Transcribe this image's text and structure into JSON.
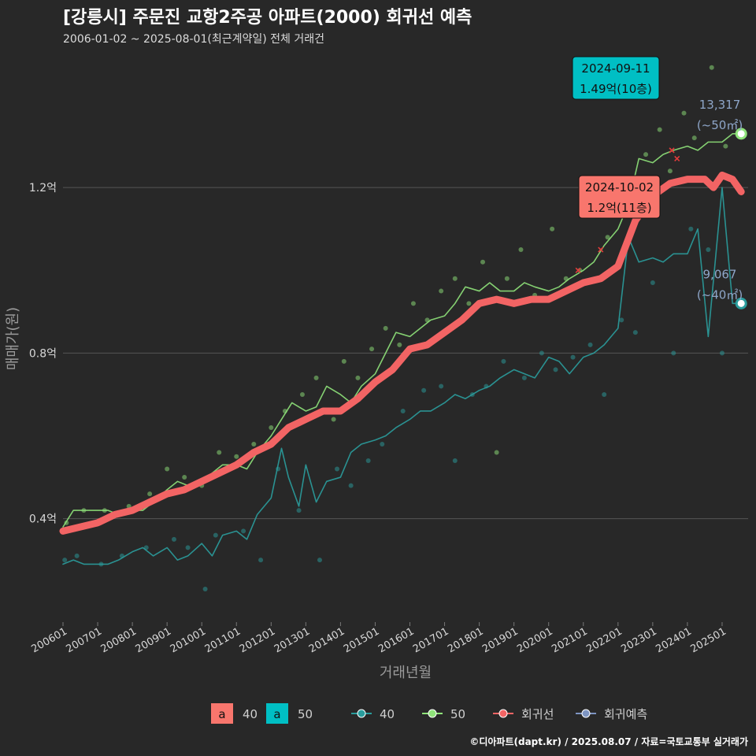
{
  "chart_data": {
    "type": "line",
    "title": "[강릉시] 주문진 교항2주공 아파트(2000) 회귀선 예측",
    "subtitle": "2006-01-02 ~ 2025-08-01(최근계약일) 전체 거래건",
    "xlabel": "거래년월",
    "ylabel": "매매가(원)",
    "caption": "©디아파트(dapt.kr) / 2025.08.07 / 자료=국토교통부 실거래가",
    "x_range": [
      2006.0,
      2025.75
    ],
    "y_range": [
      0.15,
      1.52
    ],
    "y_unit": "억",
    "y_ticks": [
      {
        "value": 0.4,
        "label": "0.4억"
      },
      {
        "value": 0.8,
        "label": "0.8억"
      },
      {
        "value": 1.2,
        "label": "1.2억"
      }
    ],
    "x_ticks": [
      "200601",
      "200701",
      "200801",
      "200901",
      "201001",
      "201101",
      "201201",
      "201301",
      "201401",
      "201501",
      "201601",
      "201701",
      "201801",
      "201901",
      "202001",
      "202101",
      "202201",
      "202301",
      "202401",
      "202501"
    ],
    "grid": true,
    "legend_position": "bottom",
    "colors": {
      "background": "#282828",
      "grid": "#555555",
      "size40": "#2a9d9d",
      "size50": "#8fe37a",
      "regression": "#f26464",
      "forecast": "#7e95c2",
      "label_red": "#f8766d",
      "label_teal": "#00bfc4"
    },
    "series": [
      {
        "name": "40",
        "color": "#2a9d9d",
        "x": [
          2006.0,
          2006.3,
          2006.6,
          2007.0,
          2007.3,
          2007.6,
          2008.0,
          2008.3,
          2008.6,
          2009.0,
          2009.3,
          2009.6,
          2010.0,
          2010.3,
          2010.6,
          2011.0,
          2011.3,
          2011.6,
          2012.0,
          2012.3,
          2012.5,
          2012.8,
          2013.0,
          2013.3,
          2013.6,
          2014.0,
          2014.3,
          2014.6,
          2015.0,
          2015.3,
          2015.6,
          2016.0,
          2016.3,
          2016.6,
          2017.0,
          2017.3,
          2017.6,
          2018.0,
          2018.3,
          2018.6,
          2019.0,
          2019.3,
          2019.6,
          2020.0,
          2020.3,
          2020.6,
          2021.0,
          2021.3,
          2021.6,
          2022.0,
          2022.3,
          2022.6,
          2023.0,
          2023.3,
          2023.6,
          2024.0,
          2024.3,
          2024.6,
          2025.0,
          2025.3,
          2025.6
        ],
        "y": [
          0.29,
          0.3,
          0.29,
          0.29,
          0.29,
          0.3,
          0.32,
          0.33,
          0.31,
          0.33,
          0.3,
          0.31,
          0.34,
          0.31,
          0.36,
          0.37,
          0.35,
          0.41,
          0.45,
          0.57,
          0.5,
          0.43,
          0.53,
          0.44,
          0.49,
          0.5,
          0.56,
          0.58,
          0.59,
          0.6,
          0.62,
          0.64,
          0.66,
          0.66,
          0.68,
          0.7,
          0.69,
          0.71,
          0.72,
          0.74,
          0.76,
          0.75,
          0.74,
          0.79,
          0.78,
          0.75,
          0.79,
          0.8,
          0.82,
          0.86,
          1.08,
          1.02,
          1.03,
          1.02,
          1.04,
          1.04,
          1.1,
          0.84,
          1.2,
          0.92,
          0.92
        ]
      },
      {
        "name": "50",
        "color": "#8fe37a",
        "x": [
          2006.0,
          2006.3,
          2006.6,
          2007.0,
          2007.3,
          2007.6,
          2008.0,
          2008.3,
          2008.6,
          2009.0,
          2009.3,
          2009.6,
          2010.0,
          2010.3,
          2010.6,
          2011.0,
          2011.3,
          2011.6,
          2012.0,
          2012.3,
          2012.6,
          2013.0,
          2013.3,
          2013.6,
          2014.0,
          2014.3,
          2014.6,
          2015.0,
          2015.3,
          2015.6,
          2016.0,
          2016.3,
          2016.6,
          2017.0,
          2017.3,
          2017.6,
          2018.0,
          2018.3,
          2018.6,
          2019.0,
          2019.3,
          2019.6,
          2020.0,
          2020.3,
          2020.6,
          2021.0,
          2021.3,
          2021.6,
          2022.0,
          2022.3,
          2022.6,
          2023.0,
          2023.3,
          2023.6,
          2024.0,
          2024.3,
          2024.6,
          2025.0,
          2025.3,
          2025.6
        ],
        "y": [
          0.38,
          0.42,
          0.42,
          0.42,
          0.42,
          0.41,
          0.42,
          0.42,
          0.44,
          0.47,
          0.49,
          0.48,
          0.49,
          0.51,
          0.53,
          0.53,
          0.52,
          0.56,
          0.6,
          0.64,
          0.68,
          0.66,
          0.67,
          0.72,
          0.7,
          0.68,
          0.72,
          0.75,
          0.8,
          0.85,
          0.84,
          0.86,
          0.88,
          0.89,
          0.92,
          0.96,
          0.95,
          0.97,
          0.95,
          0.95,
          0.97,
          0.96,
          0.95,
          0.96,
          0.98,
          1.0,
          1.02,
          1.06,
          1.1,
          1.16,
          1.27,
          1.26,
          1.28,
          1.29,
          1.3,
          1.29,
          1.31,
          1.31,
          1.33,
          1.33
        ]
      },
      {
        "name": "회귀선",
        "color": "#f26464",
        "x": [
          2006.0,
          2006.5,
          2007.0,
          2007.5,
          2008.0,
          2008.5,
          2009.0,
          2009.5,
          2010.0,
          2010.5,
          2011.0,
          2011.5,
          2012.0,
          2012.5,
          2013.0,
          2013.5,
          2014.0,
          2014.5,
          2015.0,
          2015.5,
          2016.0,
          2016.5,
          2017.0,
          2017.5,
          2018.0,
          2018.5,
          2019.0,
          2019.5,
          2020.0,
          2020.5,
          2021.0,
          2021.5,
          2022.0,
          2022.5,
          2023.0,
          2023.5,
          2024.0,
          2024.5,
          2024.75,
          2025.0,
          2025.3,
          2025.55
        ],
        "y": [
          0.37,
          0.38,
          0.39,
          0.41,
          0.42,
          0.44,
          0.46,
          0.47,
          0.49,
          0.51,
          0.53,
          0.56,
          0.58,
          0.62,
          0.64,
          0.66,
          0.66,
          0.69,
          0.73,
          0.76,
          0.81,
          0.82,
          0.85,
          0.88,
          0.92,
          0.93,
          0.92,
          0.93,
          0.93,
          0.95,
          0.97,
          0.98,
          1.01,
          1.12,
          1.18,
          1.21,
          1.22,
          1.22,
          1.2,
          1.23,
          1.22,
          1.19
        ]
      }
    ],
    "scatter": {
      "name": "거래건",
      "points": [
        {
          "x": 2006.05,
          "y": 0.3,
          "size": 40
        },
        {
          "x": 2006.4,
          "y": 0.31,
          "size": 40
        },
        {
          "x": 2007.1,
          "y": 0.29,
          "size": 40
        },
        {
          "x": 2007.7,
          "y": 0.31,
          "size": 40
        },
        {
          "x": 2008.4,
          "y": 0.33,
          "size": 40
        },
        {
          "x": 2009.2,
          "y": 0.35,
          "size": 40
        },
        {
          "x": 2009.6,
          "y": 0.33,
          "size": 40
        },
        {
          "x": 2010.1,
          "y": 0.23,
          "size": 40
        },
        {
          "x": 2010.4,
          "y": 0.36,
          "size": 40
        },
        {
          "x": 2011.2,
          "y": 0.37,
          "size": 40
        },
        {
          "x": 2011.7,
          "y": 0.3,
          "size": 40
        },
        {
          "x": 2012.2,
          "y": 0.52,
          "size": 40
        },
        {
          "x": 2012.8,
          "y": 0.42,
          "size": 40
        },
        {
          "x": 2013.4,
          "y": 0.3,
          "size": 40
        },
        {
          "x": 2013.9,
          "y": 0.52,
          "size": 40
        },
        {
          "x": 2014.3,
          "y": 0.48,
          "size": 40
        },
        {
          "x": 2014.8,
          "y": 0.54,
          "size": 40
        },
        {
          "x": 2015.2,
          "y": 0.58,
          "size": 40
        },
        {
          "x": 2015.8,
          "y": 0.66,
          "size": 40
        },
        {
          "x": 2016.4,
          "y": 0.71,
          "size": 40
        },
        {
          "x": 2016.9,
          "y": 0.72,
          "size": 40
        },
        {
          "x": 2017.3,
          "y": 0.54,
          "size": 40
        },
        {
          "x": 2017.8,
          "y": 0.7,
          "size": 40
        },
        {
          "x": 2018.2,
          "y": 0.72,
          "size": 40
        },
        {
          "x": 2018.7,
          "y": 0.78,
          "size": 40
        },
        {
          "x": 2019.3,
          "y": 0.74,
          "size": 40
        },
        {
          "x": 2019.8,
          "y": 0.8,
          "size": 40
        },
        {
          "x": 2020.2,
          "y": 0.76,
          "size": 40
        },
        {
          "x": 2020.7,
          "y": 0.79,
          "size": 40
        },
        {
          "x": 2021.2,
          "y": 0.82,
          "size": 40
        },
        {
          "x": 2021.6,
          "y": 0.7,
          "size": 40
        },
        {
          "x": 2022.1,
          "y": 0.88,
          "size": 40
        },
        {
          "x": 2022.5,
          "y": 0.85,
          "size": 40
        },
        {
          "x": 2023.0,
          "y": 0.97,
          "size": 40
        },
        {
          "x": 2023.6,
          "y": 0.8,
          "size": 40
        },
        {
          "x": 2024.1,
          "y": 1.1,
          "size": 40
        },
        {
          "x": 2024.6,
          "y": 1.05,
          "size": 40
        },
        {
          "x": 2025.0,
          "y": 0.8,
          "size": 40
        },
        {
          "x": 2006.1,
          "y": 0.39,
          "size": 50
        },
        {
          "x": 2006.6,
          "y": 0.42,
          "size": 50
        },
        {
          "x": 2007.2,
          "y": 0.42,
          "size": 50
        },
        {
          "x": 2007.9,
          "y": 0.43,
          "size": 50
        },
        {
          "x": 2008.5,
          "y": 0.46,
          "size": 50
        },
        {
          "x": 2009.0,
          "y": 0.52,
          "size": 50
        },
        {
          "x": 2009.5,
          "y": 0.5,
          "size": 50
        },
        {
          "x": 2010.0,
          "y": 0.48,
          "size": 50
        },
        {
          "x": 2010.5,
          "y": 0.56,
          "size": 50
        },
        {
          "x": 2011.0,
          "y": 0.55,
          "size": 50
        },
        {
          "x": 2011.5,
          "y": 0.58,
          "size": 50
        },
        {
          "x": 2012.0,
          "y": 0.62,
          "size": 50
        },
        {
          "x": 2012.4,
          "y": 0.66,
          "size": 50
        },
        {
          "x": 2012.9,
          "y": 0.7,
          "size": 50
        },
        {
          "x": 2013.3,
          "y": 0.74,
          "size": 50
        },
        {
          "x": 2013.8,
          "y": 0.64,
          "size": 50
        },
        {
          "x": 2014.1,
          "y": 0.78,
          "size": 50
        },
        {
          "x": 2014.5,
          "y": 0.74,
          "size": 50
        },
        {
          "x": 2014.9,
          "y": 0.81,
          "size": 50
        },
        {
          "x": 2015.3,
          "y": 0.86,
          "size": 50
        },
        {
          "x": 2015.7,
          "y": 0.82,
          "size": 50
        },
        {
          "x": 2016.1,
          "y": 0.92,
          "size": 50
        },
        {
          "x": 2016.5,
          "y": 0.88,
          "size": 50
        },
        {
          "x": 2016.9,
          "y": 0.95,
          "size": 50
        },
        {
          "x": 2017.3,
          "y": 0.98,
          "size": 50
        },
        {
          "x": 2017.7,
          "y": 0.92,
          "size": 50
        },
        {
          "x": 2018.1,
          "y": 1.02,
          "size": 50
        },
        {
          "x": 2018.5,
          "y": 0.56,
          "size": 50
        },
        {
          "x": 2018.8,
          "y": 0.98,
          "size": 50
        },
        {
          "x": 2019.2,
          "y": 1.05,
          "size": 50
        },
        {
          "x": 2019.6,
          "y": 0.94,
          "size": 50
        },
        {
          "x": 2020.1,
          "y": 1.1,
          "size": 50
        },
        {
          "x": 2020.5,
          "y": 0.98,
          "size": 50
        },
        {
          "x": 2020.9,
          "y": 1.0,
          "size": 50
        },
        {
          "x": 2021.3,
          "y": 1.15,
          "size": 50
        },
        {
          "x": 2021.7,
          "y": 1.08,
          "size": 50
        },
        {
          "x": 2022.0,
          "y": 1.14,
          "size": 50
        },
        {
          "x": 2022.4,
          "y": 1.2,
          "size": 50
        },
        {
          "x": 2022.8,
          "y": 1.28,
          "size": 50
        },
        {
          "x": 2023.2,
          "y": 1.34,
          "size": 50
        },
        {
          "x": 2023.5,
          "y": 1.24,
          "size": 50
        },
        {
          "x": 2023.9,
          "y": 1.38,
          "size": 50
        },
        {
          "x": 2024.2,
          "y": 1.32,
          "size": 50
        },
        {
          "x": 2024.7,
          "y": 1.49,
          "size": 50
        },
        {
          "x": 2025.1,
          "y": 1.3,
          "size": 50
        }
      ]
    },
    "marked_points": [
      {
        "x": 2020.85,
        "y": 1.0
      },
      {
        "x": 2021.15,
        "y": 1.15
      },
      {
        "x": 2021.5,
        "y": 1.05
      },
      {
        "x": 2023.55,
        "y": 1.29
      },
      {
        "x": 2023.7,
        "y": 1.27
      }
    ],
    "end_markers": [
      {
        "series": "50",
        "x": 2025.55,
        "y": 1.33,
        "value_label": "13,317",
        "area_label": "(~50㎡)",
        "color": "#8fe37a"
      },
      {
        "series": "40",
        "x": 2025.55,
        "y": 0.92,
        "value_label": "9,067",
        "area_label": "(~40㎡)",
        "color": "#2a9d9d"
      }
    ],
    "annotations": [
      {
        "kind": "max",
        "date": "2024-09-11",
        "price": "1.49억(10층)",
        "x": 2024.7,
        "y": 1.49,
        "color": "#00bfc4"
      },
      {
        "kind": "recent",
        "date": "2024-10-02",
        "price": "1.2억(11층)",
        "x": 2024.75,
        "y": 1.2,
        "color": "#f8766d"
      }
    ],
    "legend": {
      "fill_items": [
        {
          "key": "a",
          "label": "40",
          "color": "#f8766d"
        },
        {
          "key": "a",
          "label": "50",
          "color": "#00bfc4"
        }
      ],
      "line_items": [
        {
          "label": "40",
          "color": "#2a9d9d"
        },
        {
          "label": "50",
          "color": "#8fe37a"
        },
        {
          "label": "회귀선",
          "color": "#f26464"
        },
        {
          "label": "회귀예측",
          "color": "#7e95c2"
        }
      ]
    }
  }
}
